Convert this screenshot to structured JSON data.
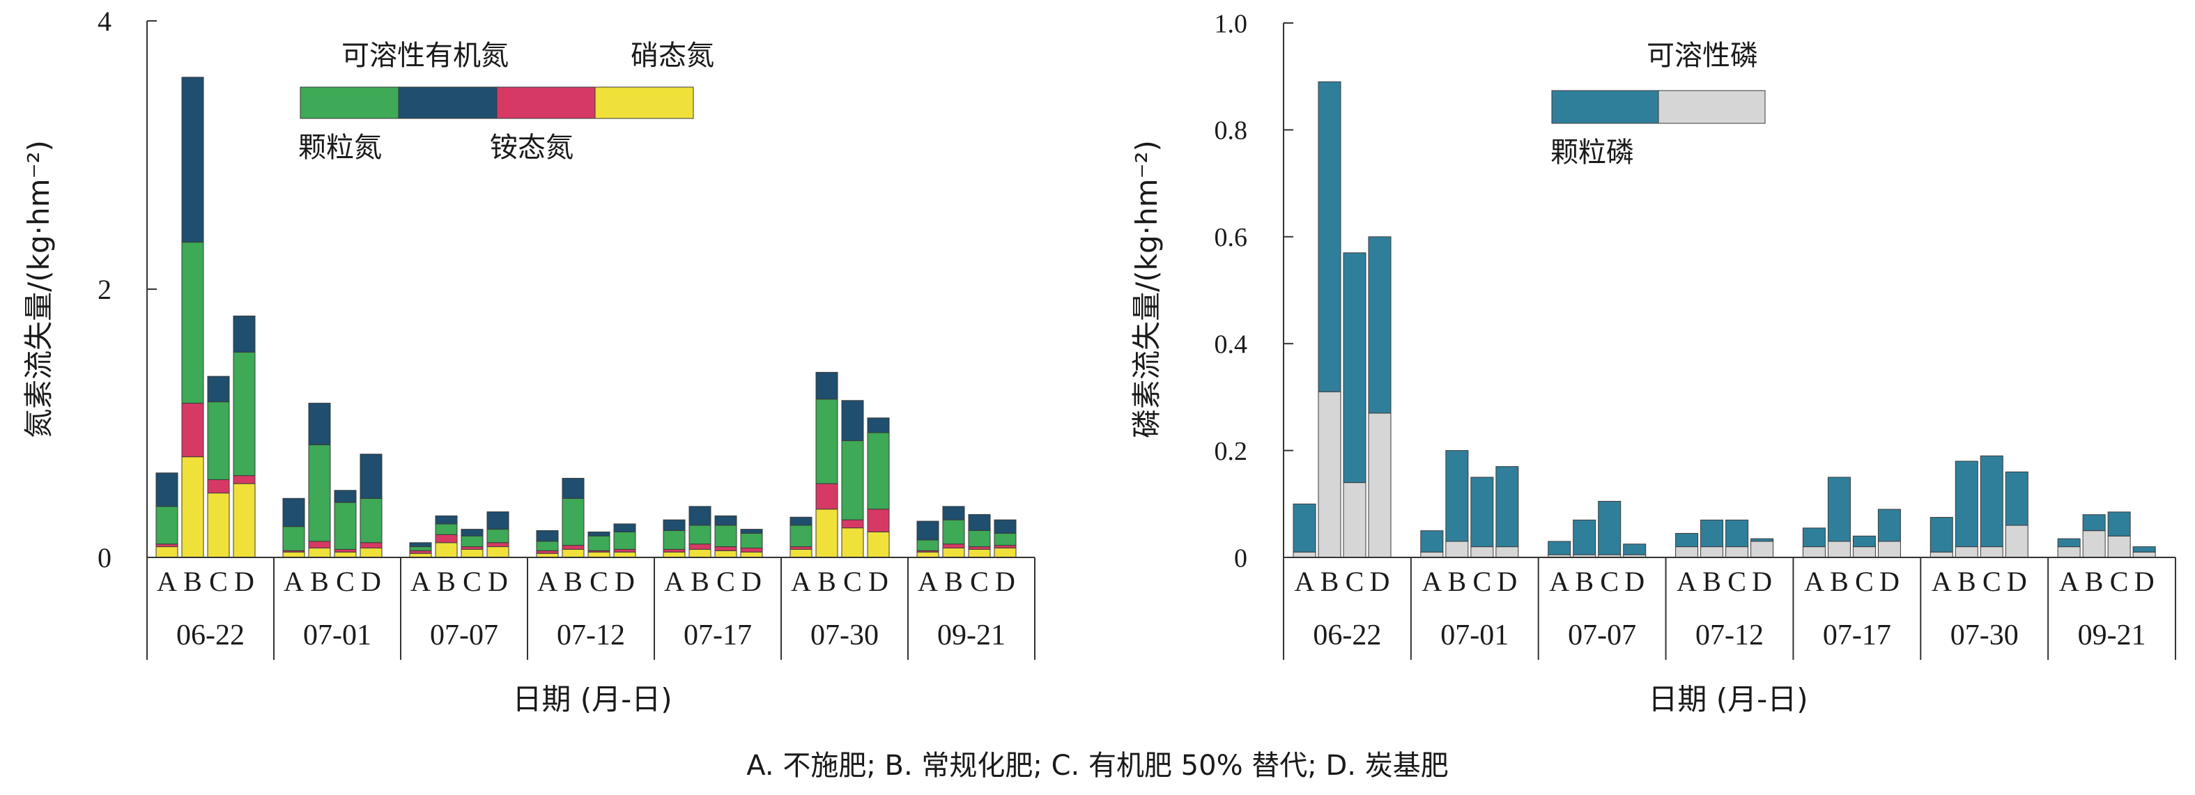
{
  "colors": {
    "particulate_n": "#1f4e6e",
    "dissolved_organic_n": "#3ea956",
    "ammonium_n": "#d63a64",
    "nitrate_n": "#f0e03a",
    "particulate_p": "#2f7f9b",
    "soluble_p": "#d6d6d6"
  },
  "caption": "A. 不施肥;  B. 常规化肥;  C. 有机肥 50% 替代;  D. 炭基肥",
  "chart_data": [
    {
      "type": "bar",
      "stacked": true,
      "ylabel": "氮素流失量/(kg·hm⁻²)",
      "xlabel": "日期 (月-日)",
      "ylim": [
        0,
        4
      ],
      "yticks": [
        "0",
        "2",
        "4"
      ],
      "grid": false,
      "legend_position": "top-center",
      "dates": [
        "06-22",
        "07-01",
        "07-07",
        "07-12",
        "07-17",
        "07-30",
        "09-21"
      ],
      "treatments": [
        "A",
        "B",
        "C",
        "D"
      ],
      "series": [
        {
          "name": "硝态氮",
          "color_key": "nitrate_n",
          "values": [
            [
              0.08,
              0.75,
              0.48,
              0.55
            ],
            [
              0.04,
              0.07,
              0.04,
              0.07
            ],
            [
              0.03,
              0.11,
              0.06,
              0.08
            ],
            [
              0.03,
              0.06,
              0.04,
              0.04
            ],
            [
              0.04,
              0.06,
              0.05,
              0.04
            ],
            [
              0.06,
              0.36,
              0.22,
              0.19
            ],
            [
              0.04,
              0.07,
              0.06,
              0.07
            ]
          ]
        },
        {
          "name": "铵态氮",
          "color_key": "ammonium_n",
          "values": [
            [
              0.02,
              0.4,
              0.1,
              0.06
            ],
            [
              0.01,
              0.05,
              0.02,
              0.04
            ],
            [
              0.02,
              0.06,
              0.02,
              0.03
            ],
            [
              0.02,
              0.03,
              0.01,
              0.02
            ],
            [
              0.02,
              0.04,
              0.03,
              0.03
            ],
            [
              0.02,
              0.19,
              0.06,
              0.17
            ],
            [
              0.01,
              0.03,
              0.02,
              0.02
            ]
          ]
        },
        {
          "name": "可溶性有机氮",
          "color_key": "dissolved_organic_n",
          "values": [
            [
              0.28,
              1.2,
              0.58,
              0.92
            ],
            [
              0.18,
              0.72,
              0.35,
              0.33
            ],
            [
              0.03,
              0.08,
              0.08,
              0.1
            ],
            [
              0.07,
              0.35,
              0.11,
              0.13
            ],
            [
              0.14,
              0.14,
              0.16,
              0.11
            ],
            [
              0.16,
              0.63,
              0.59,
              0.57
            ],
            [
              0.08,
              0.18,
              0.12,
              0.09
            ]
          ]
        },
        {
          "name": "颗粒氮",
          "color_key": "particulate_n",
          "values": [
            [
              0.25,
              1.23,
              0.19,
              0.27
            ],
            [
              0.21,
              0.31,
              0.09,
              0.33
            ],
            [
              0.03,
              0.06,
              0.05,
              0.13
            ],
            [
              0.08,
              0.15,
              0.03,
              0.06
            ],
            [
              0.08,
              0.14,
              0.07,
              0.03
            ],
            [
              0.06,
              0.2,
              0.3,
              0.11
            ],
            [
              0.14,
              0.1,
              0.12,
              0.1
            ]
          ]
        }
      ],
      "legend": [
        {
          "label": "可溶性有机氮",
          "color_key": "dissolved_organic_n"
        },
        {
          "label": "硝态氮",
          "color_key": "nitrate_n"
        },
        {
          "label": "颗粒氮",
          "color_key": "particulate_n"
        },
        {
          "label": "铵态氮",
          "color_key": "ammonium_n"
        }
      ]
    },
    {
      "type": "bar",
      "stacked": true,
      "ylabel": "磷素流失量/(kg·hm⁻²)",
      "xlabel": "日期 (月-日)",
      "ylim": [
        0,
        1.0
      ],
      "yticks": [
        "0",
        "0.2",
        "0.4",
        "0.6",
        "0.8",
        "1.0"
      ],
      "grid": false,
      "legend_position": "top-center",
      "dates": [
        "06-22",
        "07-01",
        "07-07",
        "07-12",
        "07-17",
        "07-30",
        "09-21"
      ],
      "treatments": [
        "A",
        "B",
        "C",
        "D"
      ],
      "series": [
        {
          "name": "可溶性磷",
          "color_key": "soluble_p",
          "values": [
            [
              0.01,
              0.31,
              0.14,
              0.27
            ],
            [
              0.01,
              0.03,
              0.02,
              0.02
            ],
            [
              0.005,
              0.005,
              0.005,
              0.005
            ],
            [
              0.02,
              0.02,
              0.02,
              0.03
            ],
            [
              0.02,
              0.03,
              0.02,
              0.03
            ],
            [
              0.01,
              0.02,
              0.02,
              0.06
            ],
            [
              0.02,
              0.05,
              0.04,
              0.01
            ]
          ]
        },
        {
          "name": "颗粒磷",
          "color_key": "particulate_p",
          "values": [
            [
              0.09,
              0.58,
              0.43,
              0.33
            ],
            [
              0.04,
              0.17,
              0.13,
              0.15
            ],
            [
              0.025,
              0.065,
              0.1,
              0.02
            ],
            [
              0.025,
              0.05,
              0.05,
              0.005
            ],
            [
              0.035,
              0.12,
              0.02,
              0.06
            ],
            [
              0.065,
              0.16,
              0.17,
              0.1
            ],
            [
              0.015,
              0.03,
              0.045,
              0.01
            ]
          ]
        }
      ],
      "legend": [
        {
          "label": "可溶性磷",
          "color_key": "soluble_p"
        },
        {
          "label": "颗粒磷",
          "color_key": "particulate_p"
        }
      ]
    }
  ]
}
